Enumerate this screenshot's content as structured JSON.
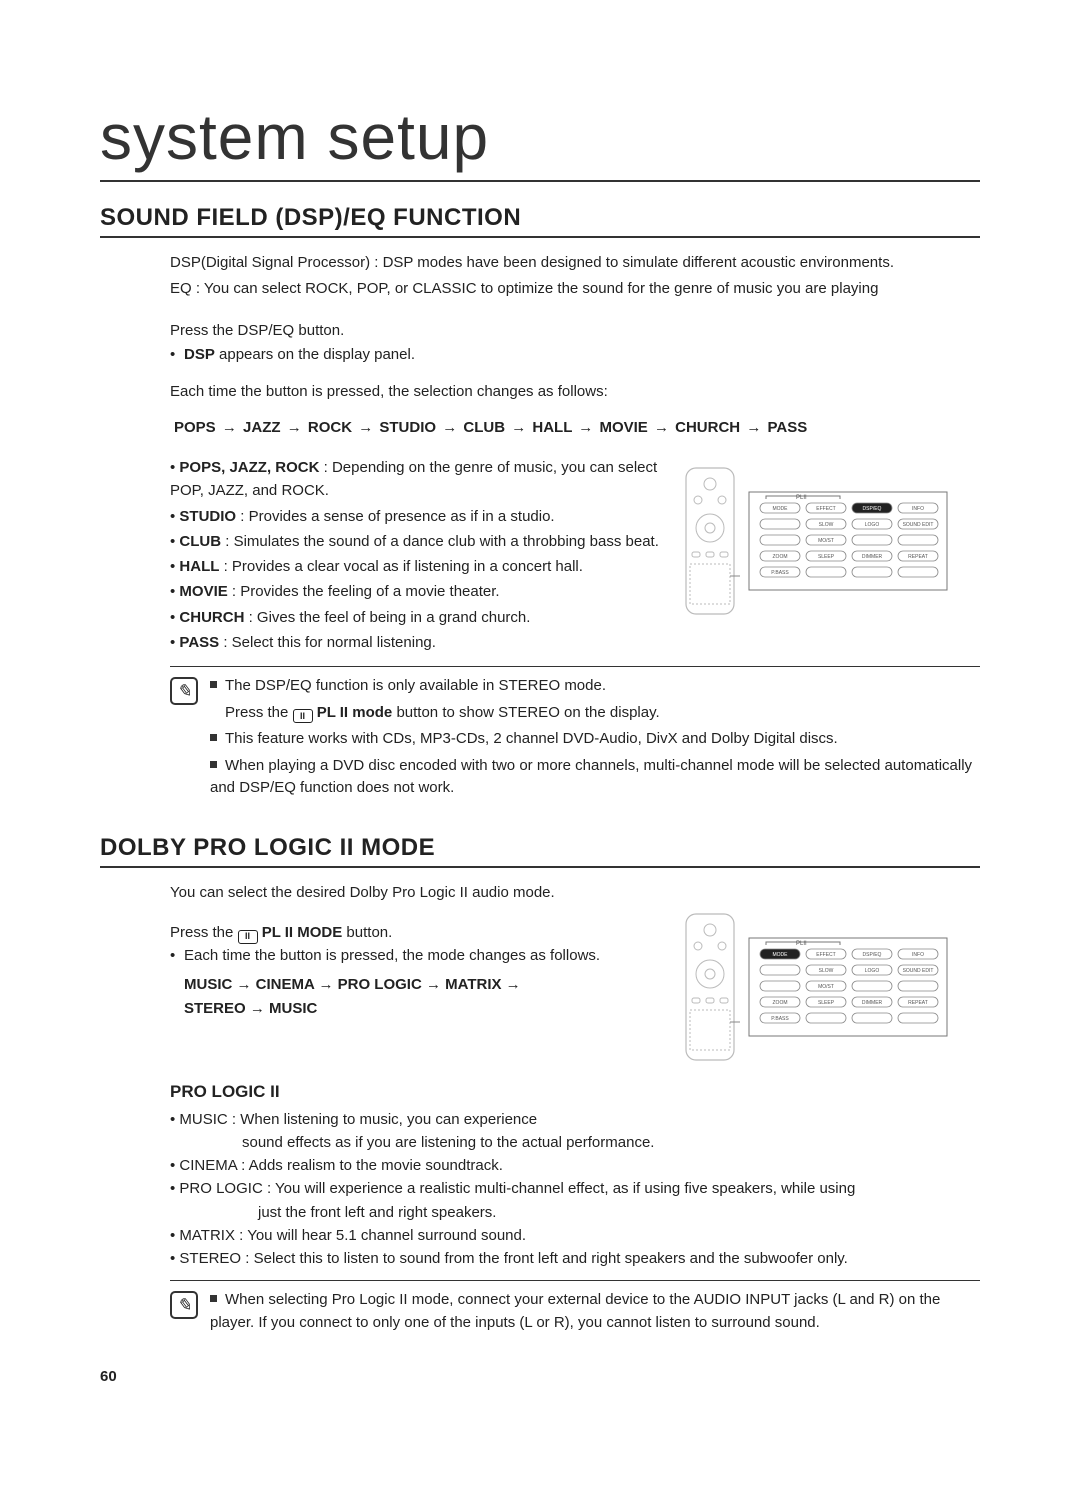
{
  "page": {
    "title": "system setup",
    "page_number": "60"
  },
  "section1": {
    "heading": "SOUND FIELD (DSP)/EQ FUNCTION",
    "intro_line1": "DSP(Digital Signal Processor) : DSP modes have been designed to simulate different acoustic environments.",
    "intro_line2": "EQ : You can select ROCK, POP, or CLASSIC to optimize the sound for the genre of music you are playing",
    "step1_line1": "Press the DSP/EQ button.",
    "step1_bullet_bold": "DSP",
    "step1_bullet_rest": " appears on the display panel.",
    "step2_line1": "Each time the button is pressed, the selection changes as follows:",
    "sequence": [
      "POPS",
      "JAZZ",
      "ROCK",
      "STUDIO",
      "CLUB",
      "HALL",
      "MOVIE",
      "CHURCH",
      "PASS"
    ],
    "modes": [
      {
        "term": "POPS, JAZZ, ROCK",
        "desc": " : Depending on the genre of music, you can select POP, JAZZ, and ROCK."
      },
      {
        "term": "STUDIO",
        "desc": " : Provides a sense of presence as if in a studio."
      },
      {
        "term": "CLUB",
        "desc": " : Simulates the sound of a dance club with a throbbing bass beat."
      },
      {
        "term": "HALL",
        "desc": " : Provides a clear vocal as if listening in a concert hall."
      },
      {
        "term": "MOVIE",
        "desc": " : Provides the feeling of a movie theater."
      },
      {
        "term": "CHURCH",
        "desc": " : Gives the feel of being in a grand church."
      },
      {
        "term": "PASS",
        "desc": " : Select this for normal listening."
      }
    ],
    "note1": "The DSP/EQ function is only available in STEREO mode.",
    "note1b_pre": "Press the ",
    "note1b_bold": " PL II mode",
    "note1b_post": " button to show STEREO on the display.",
    "note2": "This feature works with CDs, MP3-CDs, 2 channel DVD-Audio, DivX and Dolby Digital discs.",
    "note3": "When playing a DVD disc encoded with two or more channels, multi-channel mode will be selected automatically and DSP/EQ function does not work."
  },
  "section2": {
    "heading": "DOLBY PRO LOGIC II MODE",
    "intro": "You can select the desired Dolby Pro Logic II audio mode.",
    "press_pre": "Press the ",
    "press_bold": " PL II MODE",
    "press_post": " button.",
    "each_time": "Each time the button is pressed, the mode changes as follows.",
    "sequence": [
      "MUSIC",
      "CINEMA",
      "PRO LOGIC",
      "MATRIX",
      "STEREO",
      "MUSIC"
    ],
    "subtitle": "PRO LOGIC II",
    "modes": [
      {
        "term": "MUSIC",
        "desc_line1": " : When listening to music, you can experience",
        "desc_line2": "sound effects as if you are listening to the actual performance."
      },
      {
        "term": "CINEMA",
        "desc_line1": " : Adds realism to the movie soundtrack."
      },
      {
        "term": "PRO LOGIC",
        "desc_line1": " : You will experience a realistic multi-channel effect, as if using five speakers, while using",
        "desc_line2": "just the front left and right speakers."
      },
      {
        "term": "MATRIX",
        "desc_line1": " : You will hear 5.1 channel surround sound."
      },
      {
        "term": "STEREO",
        "desc_line1": " : Select this to listen to sound from the front left and right speakers and the subwoofer only."
      }
    ],
    "note": "When selecting Pro Logic II mode, connect your external device to the AUDIO INPUT jacks (L and R) on the player. If you connect to only one of the inputs (L or R), you cannot listen to surround sound."
  },
  "remote_panel": {
    "group_label": "PLII",
    "buttons_row1": [
      "MODE",
      "EFFECT",
      "DSP/EQ",
      "INFO"
    ],
    "buttons_row2": [
      "",
      "SLOW",
      "LOGO",
      "SOUND EDIT"
    ],
    "buttons_row3": [
      "",
      "MO/ST",
      "",
      ""
    ],
    "buttons_row4": [
      "ZOOM",
      "SLEEP",
      "DIMMER",
      "REPEAT"
    ],
    "buttons_row5": [
      "P.BASS",
      "",
      "",
      ""
    ],
    "highlight1": "DSP/EQ",
    "highlight2": "MODE",
    "colors": {
      "outline": "#777",
      "button_stroke": "#888",
      "highlight_fill": "#222",
      "label_text": "#555"
    }
  },
  "style": {
    "text_color": "#222",
    "rule_color": "#333",
    "body_fontsize_pt": 11,
    "heading_fontsize_pt": 18,
    "title_fontsize_pt": 48
  }
}
